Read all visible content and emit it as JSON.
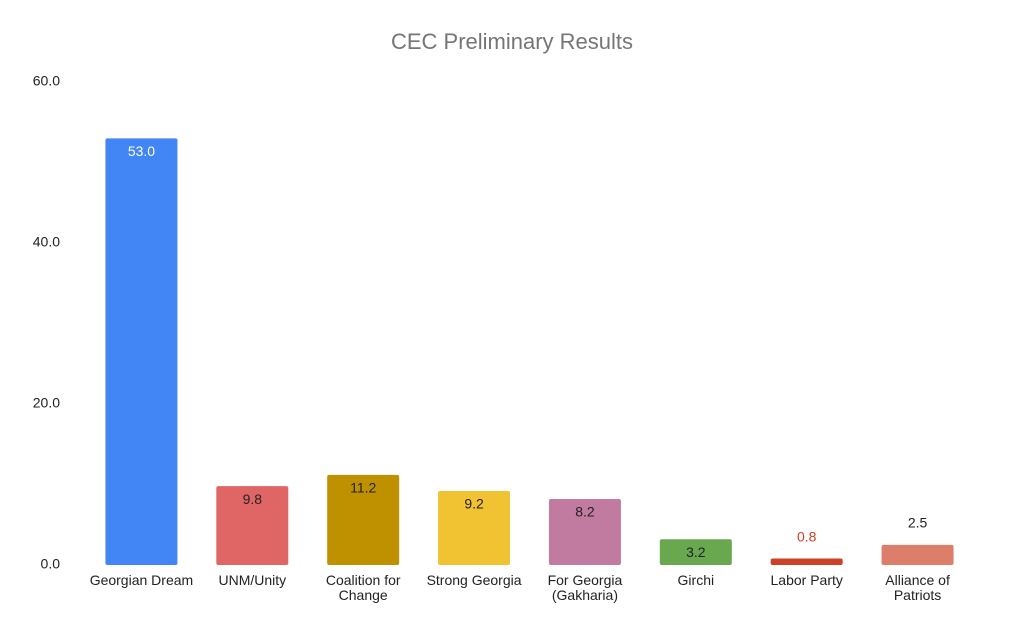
{
  "chart_data": {
    "type": "bar",
    "title": "CEC Preliminary Results",
    "categories": [
      "Georgian Dream",
      "UNM/Unity",
      "Coalition for Change",
      "Strong Georgia",
      "For Georgia (Gakharia)",
      "Girchi",
      "Labor Party",
      "Alliance of Patriots"
    ],
    "values": [
      53.0,
      9.8,
      11.2,
      9.2,
      8.2,
      3.2,
      0.8,
      2.5
    ],
    "value_labels": [
      "53.0",
      "9.8",
      "11.2",
      "9.2",
      "8.2",
      "3.2",
      "0.8",
      "2.5"
    ],
    "colors": [
      "#4285f4",
      "#e06666",
      "#bf9000",
      "#f1c232",
      "#c27ba0",
      "#6aa84f",
      "#cc4125",
      "#dd7e6b"
    ],
    "value_label_colors": [
      "#ffffff",
      "#222222",
      "#222222",
      "#222222",
      "#222222",
      "#222222",
      "#cc4125",
      "#222222"
    ],
    "ylim": [
      0,
      60
    ],
    "yticks": [
      {
        "value": 0,
        "label": "0.0"
      },
      {
        "value": 20,
        "label": "20.0"
      },
      {
        "value": 40,
        "label": "40.0"
      },
      {
        "value": 60,
        "label": "60.0"
      }
    ],
    "grid": false
  }
}
